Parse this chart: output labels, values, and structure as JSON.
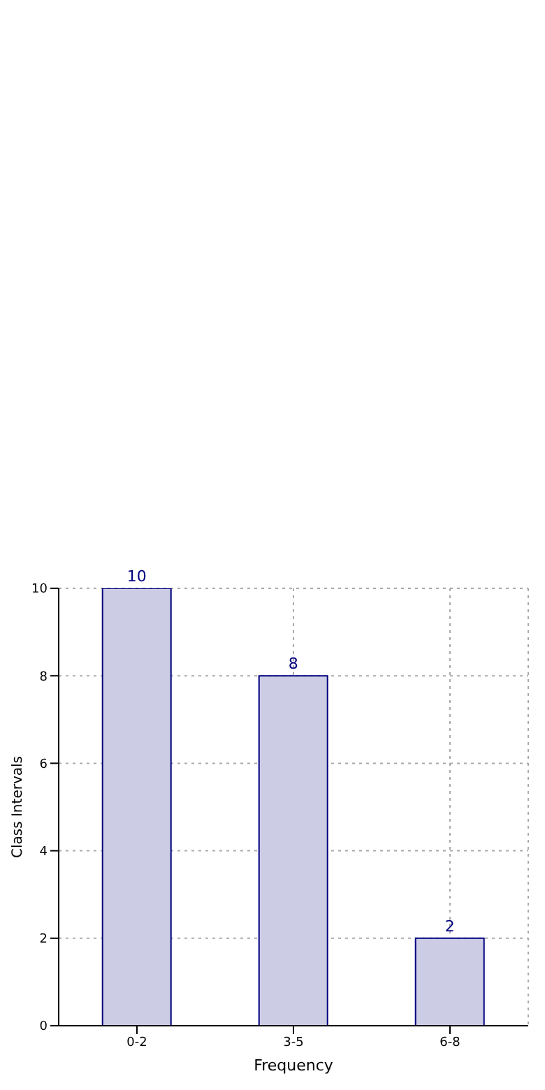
{
  "chart_data": {
    "type": "bar",
    "xlabel": "Frequency",
    "ylabel": "Class Intervals",
    "categories": [
      "0-2",
      "3-5",
      "6-8"
    ],
    "values": [
      10,
      8,
      2
    ],
    "color": "#cccce4",
    "ylim": [
      0,
      10
    ],
    "yticks": [
      0,
      2,
      4,
      6,
      8,
      10
    ],
    "grid": true,
    "data_labels": true
  }
}
